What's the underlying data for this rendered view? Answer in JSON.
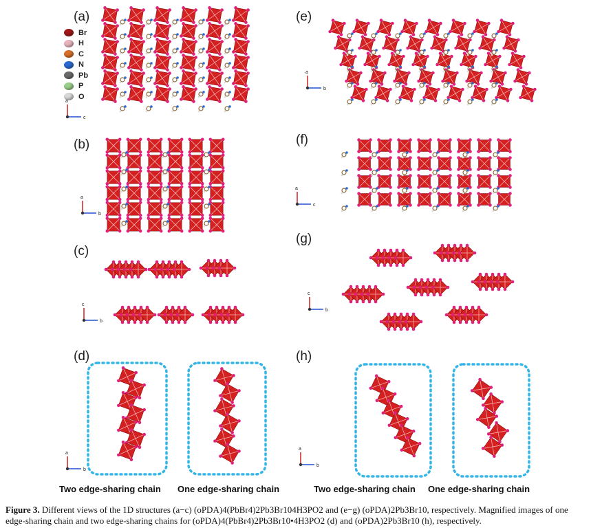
{
  "panels": {
    "a": "(a)",
    "b": "(b)",
    "c": "(c)",
    "d": "(d)",
    "e": "(e)",
    "f": "(f)",
    "g": "(g)",
    "h": "(h)"
  },
  "legend": [
    {
      "label": "Br",
      "color": "#a01818"
    },
    {
      "label": "H",
      "color": "#e8b4bc"
    },
    {
      "label": "C",
      "color": "#d8702a"
    },
    {
      "label": "N",
      "color": "#2a6ad0"
    },
    {
      "label": "Pb",
      "color": "#6a6a6a"
    },
    {
      "label": "P",
      "color": "#9ad08a"
    },
    {
      "label": "O",
      "color": "#d8d8d8"
    }
  ],
  "axes": {
    "a": "a",
    "b": "b",
    "c": "c"
  },
  "chain_labels": {
    "d_two": "Two edge-sharing chain",
    "d_one": "One edge-sharing chain",
    "h_two": "Two edge-sharing chain",
    "h_one": "One edge-sharing chain"
  },
  "caption": {
    "figure": "Figure 3.",
    "text": "Different views of the 1D structures (a−c) (oPDA)4(PbBr4)2Pb3Br104H3PO2 and (e−g) (oPDA)2Pb3Br10, respectively. Magnified images of one edge-sharing chain and two edge-sharing chains for (oPDA)4(PbBr4)2Pb3Br10•4H3PO2 (d) and (oPDA)2Pb3Br10 (h), respectively."
  },
  "colors": {
    "octahedron": "#d42020",
    "bromine": "#e0207a",
    "frame": "#33b5e5"
  }
}
